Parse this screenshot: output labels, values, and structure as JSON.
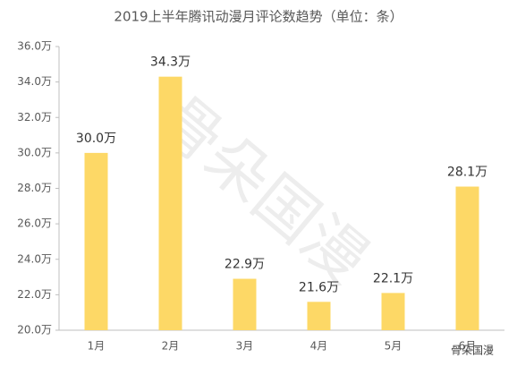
{
  "chart_data": {
    "type": "bar",
    "title": "2019上半年腾讯动漫月评论数趋势（单位：条）",
    "categories": [
      "1月",
      "2月",
      "3月",
      "4月",
      "5月",
      "6月"
    ],
    "values": [
      30.0,
      34.3,
      22.9,
      21.6,
      22.1,
      28.1
    ],
    "value_labels": [
      "30.0万",
      "34.3万",
      "22.9万",
      "21.6万",
      "22.1万",
      "28.1万"
    ],
    "color": "#fdd866",
    "ylim": [
      20,
      36
    ],
    "yticks": [
      {
        "value": 20,
        "label": "20.0万"
      },
      {
        "value": 22,
        "label": "22.0万"
      },
      {
        "value": 24,
        "label": "24.0万"
      },
      {
        "value": 26,
        "label": "26.0万"
      },
      {
        "value": 28,
        "label": "28.0万"
      },
      {
        "value": 30,
        "label": "30.0万"
      },
      {
        "value": 32,
        "label": "32.0万"
      },
      {
        "value": 34,
        "label": "34.0万"
      },
      {
        "value": 36,
        "label": "36.0万"
      }
    ],
    "grid": false,
    "watermark": "骨朵国漫"
  }
}
